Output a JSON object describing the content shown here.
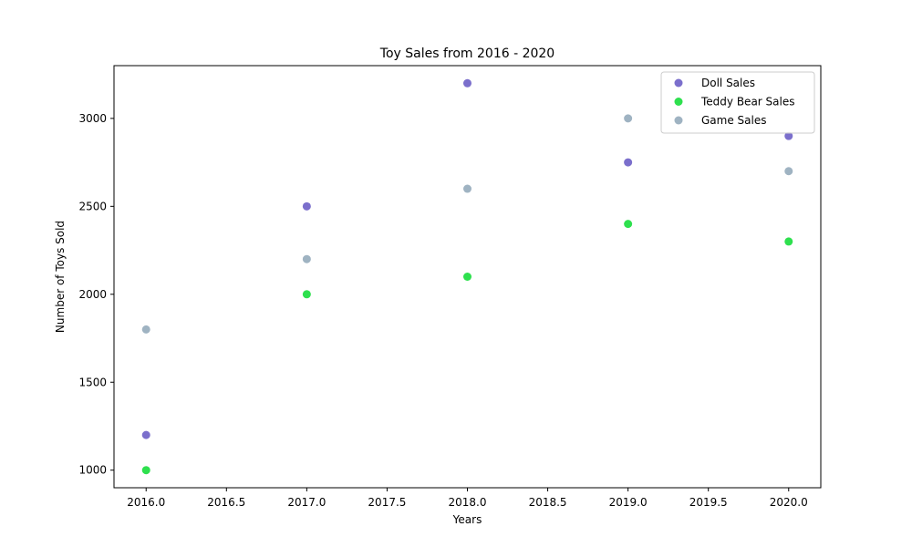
{
  "chart_data": {
    "type": "scatter",
    "title": "Toy Sales from 2016 - 2020",
    "xlabel": "Years",
    "ylabel": "Number of Toys Sold",
    "xlim": [
      2015.8,
      2020.2
    ],
    "ylim": [
      900,
      3300
    ],
    "x_ticks": [
      2016.0,
      2016.5,
      2017.0,
      2017.5,
      2018.0,
      2018.5,
      2019.0,
      2019.5,
      2020.0
    ],
    "x_tick_labels": [
      "2016.0",
      "2016.5",
      "2017.0",
      "2017.5",
      "2018.0",
      "2018.5",
      "2019.0",
      "2019.5",
      "2020.0"
    ],
    "y_ticks": [
      1000,
      1500,
      2000,
      2500,
      3000
    ],
    "y_tick_labels": [
      "1000",
      "1500",
      "2000",
      "2500",
      "3000"
    ],
    "x": [
      2016,
      2017,
      2018,
      2019,
      2020
    ],
    "series": [
      {
        "name": "Doll Sales",
        "color": "#7b6fcc",
        "values": [
          1200,
          2500,
          3200,
          2750,
          2900
        ]
      },
      {
        "name": "Teddy Bear Sales",
        "color": "#2ee04e",
        "values": [
          1000,
          2000,
          2100,
          2400,
          2300
        ]
      },
      {
        "name": "Game Sales",
        "color": "#9fb3c2",
        "values": [
          1800,
          2200,
          2600,
          3000,
          2700
        ]
      }
    ],
    "grid": false,
    "legend_position": "top-right"
  }
}
